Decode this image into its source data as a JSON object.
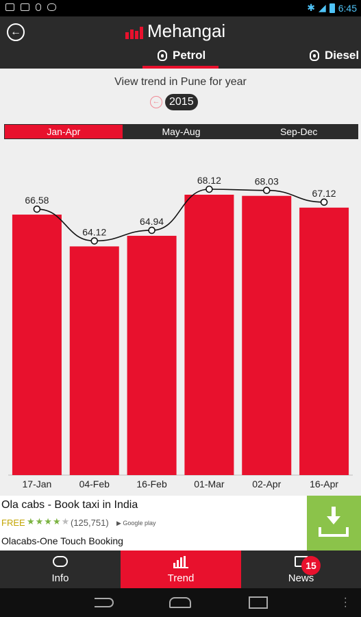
{
  "status_bar": {
    "time": "6:45"
  },
  "header": {
    "back_icon": "back-arrow-icon",
    "app_title": "Mehangai",
    "tabs": [
      {
        "label": "Petrol",
        "active": true
      },
      {
        "label": "Diesel",
        "active": false
      }
    ]
  },
  "year_selector": {
    "label": "View trend in Pune for year",
    "year": "2015"
  },
  "periods": [
    {
      "label": "Jan-Apr",
      "active": true
    },
    {
      "label": "May-Aug",
      "active": false
    },
    {
      "label": "Sep-Dec",
      "active": false
    }
  ],
  "colors": {
    "accent": "#e8112d",
    "dark": "#2b2b2b",
    "ad_green": "#8bc34a"
  },
  "chart_data": {
    "type": "bar",
    "categories": [
      "17-Jan",
      "04-Feb",
      "16-Feb",
      "01-Mar",
      "02-Apr",
      "16-Apr"
    ],
    "values": [
      66.58,
      64.12,
      64.94,
      68.12,
      68.03,
      67.12
    ],
    "value_labels": [
      "66.58",
      "64.12",
      "64.94",
      "68.12",
      "68.03",
      "67.12"
    ],
    "line_overlay": true,
    "grid": false,
    "ylim": [
      0,
      70
    ]
  },
  "ad": {
    "title": "Ola cabs - Book taxi in India",
    "price": "FREE",
    "stars": "★★★★",
    "rating": 4,
    "reviews": "(125,751)",
    "store": "Google play",
    "subtitle": "Olacabs-One Touch Booking"
  },
  "bottom_nav": [
    {
      "label": "Info",
      "active": false
    },
    {
      "label": "Trend",
      "active": true
    },
    {
      "label": "News",
      "active": false,
      "badge": "15"
    }
  ]
}
